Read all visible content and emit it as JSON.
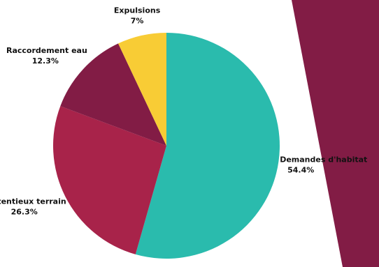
{
  "chart_data": {
    "type": "pie",
    "title": "",
    "start_angle_deg": 0,
    "direction": "clockwise",
    "slices": [
      {
        "label": "Demandes d'habitat",
        "value": 54.4,
        "value_label": "54.4%",
        "color": "#2abbad"
      },
      {
        "label": "Contentieux terrain",
        "value": 26.3,
        "value_label": "26.3%",
        "color": "#a8234a"
      },
      {
        "label": "Raccordement eau",
        "value": 12.3,
        "value_label": "12.3%",
        "color": "#821c45"
      },
      {
        "label": "Expulsions",
        "value": 7,
        "value_label": "7%",
        "color": "#f8cc35"
      }
    ]
  },
  "decor": {
    "accent_color": "#821c45"
  }
}
